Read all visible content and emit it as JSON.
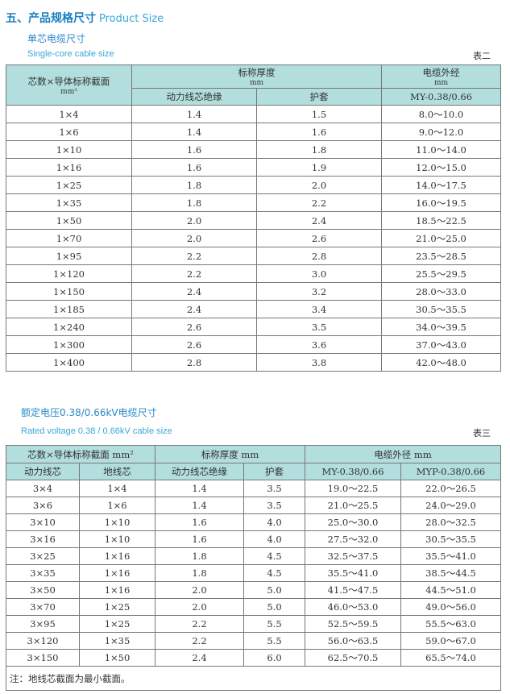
{
  "section": {
    "title": "五、产品规格尺寸",
    "title_en": "Product Size"
  },
  "table2": {
    "title": "单芯电缆尺寸",
    "title_en": "Single-core cable size",
    "label": "表二",
    "headers": {
      "section": "芯数×导体标称截面",
      "section_unit": "mm²",
      "thickness": "标称厚度",
      "thickness_unit": "mm",
      "insulation": "动力线芯绝缘",
      "sheath": "护套",
      "outer": "电缆外经",
      "outer_unit": "mm",
      "model": "MY-0.38/0.66"
    },
    "rows": [
      [
        "1×4",
        "1.4",
        "1.5",
        "8.0～10.0"
      ],
      [
        "1×6",
        "1.4",
        "1.6",
        "9.0～12.0"
      ],
      [
        "1×10",
        "1.6",
        "1.8",
        "11.0～14.0"
      ],
      [
        "1×16",
        "1.6",
        "1.9",
        "12.0～15.0"
      ],
      [
        "1×25",
        "1.8",
        "2.0",
        "14.0～17.5"
      ],
      [
        "1×35",
        "1.8",
        "2.2",
        "16.0～19.5"
      ],
      [
        "1×50",
        "2.0",
        "2.4",
        "18.5～22.5"
      ],
      [
        "1×70",
        "2.0",
        "2.6",
        "21.0～25.0"
      ],
      [
        "1×95",
        "2.2",
        "2.8",
        "23.5～28.5"
      ],
      [
        "1×120",
        "2.2",
        "3.0",
        "25.5～29.5"
      ],
      [
        "1×150",
        "2.4",
        "3.2",
        "28.0～33.0"
      ],
      [
        "1×185",
        "2.4",
        "3.4",
        "30.5～35.5"
      ],
      [
        "1×240",
        "2.6",
        "3.5",
        "34.0～39.5"
      ],
      [
        "1×300",
        "2.6",
        "3.6",
        "37.0～43.0"
      ],
      [
        "1×400",
        "2.8",
        "3.8",
        "42.0～48.0"
      ]
    ]
  },
  "table3": {
    "title": "额定电压0.38/0.66kV电缆尺寸",
    "title_en": "Rated voltage 0.38 / 0.66kV cable size",
    "label": "表三",
    "headers": {
      "section": "芯数×导体标称截面 mm²",
      "thickness": "标称厚度 mm",
      "outer": "电缆外径 mm",
      "power": "动力线芯",
      "ground": "地线芯",
      "insulation": "动力线芯绝缘",
      "sheath": "护套",
      "my": "MY-0.38/0.66",
      "myp": "MYP-0.38/0.66"
    },
    "rows": [
      [
        "3×4",
        "1×4",
        "1.4",
        "3.5",
        "19.0～22.5",
        "22.0～26.5"
      ],
      [
        "3×6",
        "1×6",
        "1.4",
        "3.5",
        "21.0～25.5",
        "24.0～29.0"
      ],
      [
        "3×10",
        "1×10",
        "1.6",
        "4.0",
        "25.0～30.0",
        "28.0～32.5"
      ],
      [
        "3×16",
        "1×10",
        "1.6",
        "4.0",
        "27.5～32.0",
        "30.5～35.5"
      ],
      [
        "3×25",
        "1×16",
        "1.8",
        "4.5",
        "32.5～37.5",
        "35.5～41.0"
      ],
      [
        "3×35",
        "1×16",
        "1.8",
        "4.5",
        "35.5～41.0",
        "38.5～44.5"
      ],
      [
        "3×50",
        "1×16",
        "2.0",
        "5.0",
        "41.5～47.5",
        "44.5～51.0"
      ],
      [
        "3×70",
        "1×25",
        "2.0",
        "5.0",
        "46.0～53.0",
        "49.0～56.0"
      ],
      [
        "3×95",
        "1×25",
        "2.2",
        "5.5",
        "52.5～59.5",
        "55.5～63.0"
      ],
      [
        "3×120",
        "1×35",
        "2.2",
        "5.5",
        "56.0～63.5",
        "59.0～67.0"
      ],
      [
        "3×150",
        "1×50",
        "2.4",
        "6.0",
        "62.5～70.5",
        "65.5～74.0"
      ]
    ],
    "note": "注：地线芯截面为最小截面。"
  }
}
